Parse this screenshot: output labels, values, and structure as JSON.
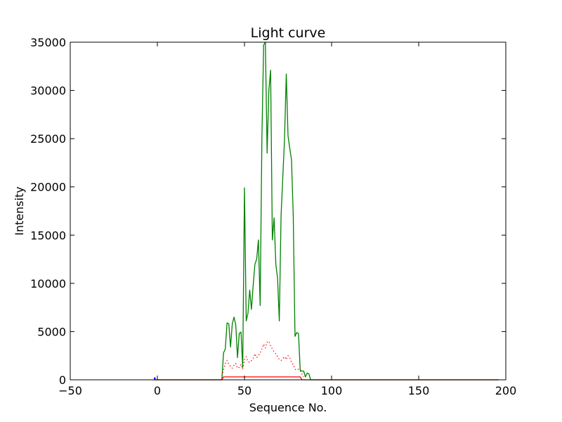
{
  "chart_data": {
    "type": "line",
    "title": "Light curve",
    "xlabel": "Sequence No.",
    "ylabel": "Intensity",
    "xlim": [
      -50,
      200
    ],
    "ylim": [
      0,
      35000
    ],
    "xticks": [
      -50,
      0,
      50,
      100,
      150,
      200
    ],
    "yticks": [
      0,
      5000,
      10000,
      15000,
      20000,
      25000,
      30000,
      35000
    ],
    "xtick_labels": [
      "−50",
      "0",
      "50",
      "100",
      "150",
      "200"
    ],
    "ytick_labels": [
      "0",
      "5000",
      "10000",
      "15000",
      "20000",
      "25000",
      "30000",
      "35000"
    ],
    "grid": false,
    "series": [
      {
        "color": "#008000",
        "style": "solid",
        "x": [
          -2,
          0,
          37,
          38,
          39,
          40,
          41,
          42,
          43,
          44,
          45,
          46,
          47,
          48,
          49,
          50,
          51,
          52,
          53,
          54,
          55,
          56,
          57,
          58,
          59,
          60,
          61,
          62,
          63,
          64,
          65,
          66,
          67,
          68,
          69,
          70,
          71,
          72,
          73,
          74,
          75,
          76,
          77,
          78,
          79,
          80,
          81,
          82,
          83,
          84,
          85,
          86,
          87,
          88,
          89,
          196
        ],
        "y": [
          0,
          0,
          0,
          2800,
          3200,
          5900,
          5800,
          3400,
          5800,
          6500,
          5700,
          2300,
          4800,
          4950,
          1300,
          19900,
          6100,
          6900,
          9300,
          7300,
          9800,
          12000,
          12500,
          14500,
          7700,
          25000,
          34700,
          35000,
          23500,
          30000,
          32100,
          14500,
          16800,
          12000,
          10500,
          6100,
          17000,
          21000,
          25000,
          31700,
          25300,
          24000,
          22800,
          17000,
          4500,
          4900,
          4800,
          1000,
          900,
          900,
          300,
          700,
          600,
          0,
          0,
          0
        ]
      },
      {
        "color": "#ff0000",
        "style": "dotted",
        "x": [
          37,
          38,
          39,
          40,
          41,
          42,
          43,
          44,
          45,
          46,
          47,
          48,
          49,
          50,
          51,
          52,
          53,
          54,
          55,
          56,
          57,
          58,
          59,
          60,
          61,
          62,
          63,
          64,
          65,
          66,
          67,
          68,
          69,
          70,
          71,
          72,
          73,
          74,
          75,
          76,
          77,
          78,
          79,
          80,
          81,
          82,
          83,
          84
        ],
        "y": [
          400,
          1000,
          1700,
          2000,
          1600,
          1400,
          1200,
          1500,
          1700,
          1200,
          1300,
          1600,
          1100,
          2100,
          2400,
          1900,
          1800,
          2000,
          2200,
          2700,
          2300,
          2500,
          2800,
          3200,
          3700,
          3300,
          3900,
          4000,
          3500,
          3200,
          2900,
          2700,
          2400,
          2100,
          2000,
          2200,
          2400,
          2100,
          2500,
          2300,
          1800,
          1600,
          1100,
          1000,
          1100,
          900,
          600,
          300
        ]
      },
      {
        "color": "#ff0000",
        "style": "solid",
        "x": [
          -2,
          0,
          37,
          38,
          82,
          83,
          196
        ],
        "y": [
          0,
          0,
          0,
          300,
          300,
          0,
          0
        ]
      },
      {
        "color": "#0000ff",
        "style": "solid",
        "x": [
          -2,
          -1
        ],
        "y": [
          150,
          150
        ]
      }
    ]
  }
}
